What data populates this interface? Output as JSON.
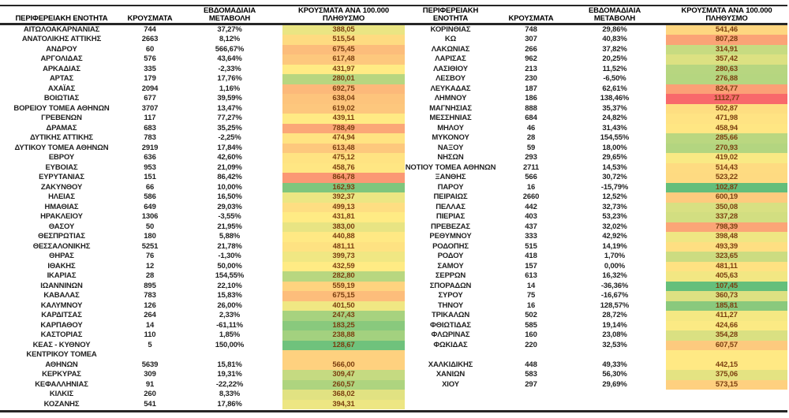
{
  "color_scale": {
    "min_color": "#63BE7B",
    "mid_color": "#FFEB84",
    "max_color": "#F8696B",
    "value_text_color": "#7b3f10",
    "border_color": "#262626"
  },
  "chart_data": {
    "type": "table",
    "headers": {
      "region": "ΠΕΡΙΦΕΡΕΙΑΚΗ ΕΝΟΤΗΤΑ",
      "cases": "ΚΡΟΥΣΜΑΤΑ",
      "change": "ΕΒΔΟΜΑΔΙΑΙΑ ΜΕΤΑΒΟΛΗ",
      "per100k": "ΚΡΟΥΣΜΑΤΑ ΑΝΑ 100.000 ΠΛΗΘΥΣΜΟ"
    },
    "tables": [
      {
        "id": "left",
        "rows": [
          {
            "name": "ΑΙΤΩΛΟΑΚΑΡΝΑΝΙΑΣ",
            "cases": "744",
            "change": "37,27%",
            "per100k": "388,05"
          },
          {
            "name": "ΑΝΑΤΟΛΙΚΗΣ ΑΤΤΙΚΗΣ",
            "cases": "2663",
            "change": "8,12%",
            "per100k": "515,54"
          },
          {
            "name": "ΑΝΔΡΟΥ",
            "cases": "60",
            "change": "566,67%",
            "per100k": "675,45"
          },
          {
            "name": "ΑΡΓΟΛΙΔΑΣ",
            "cases": "576",
            "change": "43,64%",
            "per100k": "617,48"
          },
          {
            "name": "ΑΡΚΑΔΙΑΣ",
            "cases": "335",
            "change": "-2,33%",
            "per100k": "431,97"
          },
          {
            "name": "ΑΡΤΑΣ",
            "cases": "179",
            "change": "17,76%",
            "per100k": "280,01"
          },
          {
            "name": "ΑΧΑΪΑΣ",
            "cases": "2094",
            "change": "1,16%",
            "per100k": "692,75"
          },
          {
            "name": "ΒΟΙΩΤΙΑΣ",
            "cases": "677",
            "change": "39,59%",
            "per100k": "638,04"
          },
          {
            "name": "ΒΟΡΕΙΟΥ ΤΟΜΕΑ ΑΘΗΝΩΝ",
            "cases": "3707",
            "change": "13,47%",
            "per100k": "619,02"
          },
          {
            "name": "ΓΡΕΒΕΝΩΝ",
            "cases": "117",
            "change": "77,27%",
            "per100k": "439,11"
          },
          {
            "name": "ΔΡΑΜΑΣ",
            "cases": "683",
            "change": "35,25%",
            "per100k": "788,49"
          },
          {
            "name": "ΔΥΤΙΚΗΣ ΑΤΤΙΚΗΣ",
            "cases": "783",
            "change": "-2,25%",
            "per100k": "474,94"
          },
          {
            "name": "ΔΥΤΙΚΟΥ ΤΟΜΕΑ ΑΘΗΝΩΝ",
            "cases": "2919",
            "change": "17,84%",
            "per100k": "613,48"
          },
          {
            "name": "ΕΒΡΟΥ",
            "cases": "636",
            "change": "42,60%",
            "per100k": "475,12"
          },
          {
            "name": "ΕΥΒΟΙΑΣ",
            "cases": "953",
            "change": "21,09%",
            "per100k": "458,76"
          },
          {
            "name": "ΕΥΡΥΤΑΝΙΑΣ",
            "cases": "151",
            "change": "86,42%",
            "per100k": "864,78"
          },
          {
            "name": "ΖΑΚΥΝΘΟΥ",
            "cases": "66",
            "change": "10,00%",
            "per100k": "162,93"
          },
          {
            "name": "ΗΛΕΙΑΣ",
            "cases": "586",
            "change": "16,50%",
            "per100k": "392,37"
          },
          {
            "name": "ΗΜΑΘΙΑΣ",
            "cases": "649",
            "change": "29,03%",
            "per100k": "499,13"
          },
          {
            "name": "ΗΡΑΚΛΕΙΟΥ",
            "cases": "1306",
            "change": "-3,55%",
            "per100k": "431,81"
          },
          {
            "name": "ΘΑΣΟΥ",
            "cases": "50",
            "change": "21,95%",
            "per100k": "383,00"
          },
          {
            "name": "ΘΕΣΠΡΩΤΙΑΣ",
            "cases": "180",
            "change": "5,88%",
            "per100k": "440,88"
          },
          {
            "name": "ΘΕΣΣΑΛΟΝΙΚΗΣ",
            "cases": "5251",
            "change": "21,78%",
            "per100k": "481,11"
          },
          {
            "name": "ΘΗΡΑΣ",
            "cases": "76",
            "change": "-1,30%",
            "per100k": "399,73"
          },
          {
            "name": "ΙΘΑΚΗΣ",
            "cases": "12",
            "change": "50,00%",
            "per100k": "432,59"
          },
          {
            "name": "ΙΚΑΡΙΑΣ",
            "cases": "28",
            "change": "154,55%",
            "per100k": "282,80"
          },
          {
            "name": "ΙΩΑΝΝΙΝΩΝ",
            "cases": "895",
            "change": "22,10%",
            "per100k": "559,19"
          },
          {
            "name": "ΚΑΒΑΛΑΣ",
            "cases": "783",
            "change": "15,83%",
            "per100k": "675,15"
          },
          {
            "name": "ΚΑΛΥΜΝΟΥ",
            "cases": "126",
            "change": "26,00%",
            "per100k": "401,50"
          },
          {
            "name": "ΚΑΡΔΙΤΣΑΣ",
            "cases": "264",
            "change": "2,33%",
            "per100k": "247,43"
          },
          {
            "name": "ΚΑΡΠΑΘΟΥ",
            "cases": "14",
            "change": "-61,11%",
            "per100k": "183,25"
          },
          {
            "name": "ΚΑΣΤΟΡΙΑΣ",
            "cases": "110",
            "change": "1,85%",
            "per100k": "238,88"
          },
          {
            "name": "ΚΕΑΣ - ΚΥΘΝΟΥ",
            "cases": "5",
            "change": "150,00%",
            "per100k": "128,67"
          },
          {
            "name": "ΚΕΝΤΡΙΚΟΥ ΤΟΜΕΑ",
            "cases": "",
            "change": "",
            "per100k": "",
            "fill": "566,00"
          },
          {
            "name": "ΑΘΗΝΩΝ",
            "cases": "5639",
            "change": "15,81%",
            "per100k": "566,00"
          },
          {
            "name": "ΚΕΡΚΥΡΑΣ",
            "cases": "309",
            "change": "19,31%",
            "per100k": "309,47"
          },
          {
            "name": "ΚΕΦΑΛΛΗΝΙΑΣ",
            "cases": "91",
            "change": "-22,22%",
            "per100k": "260,57"
          },
          {
            "name": "ΚΙΛΚΙΣ",
            "cases": "260",
            "change": "8,33%",
            "per100k": "368,02"
          },
          {
            "name": "ΚΟΖΑΝΗΣ",
            "cases": "541",
            "change": "17,86%",
            "per100k": "394,31"
          }
        ]
      },
      {
        "id": "right",
        "rows": [
          {
            "name": "ΚΟΡΙΝΘΙΑΣ",
            "cases": "748",
            "change": "29,86%",
            "per100k": "541,46"
          },
          {
            "name": "ΚΩ",
            "cases": "307",
            "change": "40,83%",
            "per100k": "807,28"
          },
          {
            "name": "ΛΑΚΩΝΙΑΣ",
            "cases": "266",
            "change": "37,82%",
            "per100k": "314,91"
          },
          {
            "name": "ΛΑΡΙΣΑΣ",
            "cases": "962",
            "change": "20,25%",
            "per100k": "357,42"
          },
          {
            "name": "ΛΑΣΙΘΙΟΥ",
            "cases": "213",
            "change": "11,52%",
            "per100k": "280,63"
          },
          {
            "name": "ΛΕΣΒΟΥ",
            "cases": "230",
            "change": "-6,50%",
            "per100k": "276,88"
          },
          {
            "name": "ΛΕΥΚΑΔΑΣ",
            "cases": "187",
            "change": "62,61%",
            "per100k": "824,77"
          },
          {
            "name": "ΛΗΜΝΟΥ",
            "cases": "186",
            "change": "138,46%",
            "per100k": "1112,77"
          },
          {
            "name": "ΜΑΓΝΗΣΙΑΣ",
            "cases": "888",
            "change": "35,37%",
            "per100k": "502,87"
          },
          {
            "name": "ΜΕΣΣΗΝΙΑΣ",
            "cases": "684",
            "change": "24,82%",
            "per100k": "471,98"
          },
          {
            "name": "ΜΗΛΟΥ",
            "cases": "46",
            "change": "31,43%",
            "per100k": "458,94"
          },
          {
            "name": "ΜΥΚΟΝΟΥ",
            "cases": "28",
            "change": "154,55%",
            "per100k": "285,66"
          },
          {
            "name": "ΝΑΞΟΥ",
            "cases": "59",
            "change": "18,00%",
            "per100k": "270,93"
          },
          {
            "name": "ΝΗΣΩΝ",
            "cases": "293",
            "change": "29,65%",
            "per100k": "419,02"
          },
          {
            "name": "ΝΟΤΙΟΥ ΤΟΜΕΑ ΑΘΗΝΩΝ",
            "cases": "2711",
            "change": "14,53%",
            "per100k": "514,43"
          },
          {
            "name": "ΞΑΝΘΗΣ",
            "cases": "566",
            "change": "30,72%",
            "per100k": "523,22"
          },
          {
            "name": "ΠΑΡΟΥ",
            "cases": "16",
            "change": "-15,79%",
            "per100k": "102,87"
          },
          {
            "name": "ΠΕΙΡΑΙΩΣ",
            "cases": "2660",
            "change": "12,52%",
            "per100k": "600,19"
          },
          {
            "name": "ΠΕΛΛΑΣ",
            "cases": "442",
            "change": "32,73%",
            "per100k": "350,08"
          },
          {
            "name": "ΠΙΕΡΙΑΣ",
            "cases": "403",
            "change": "53,23%",
            "per100k": "337,28"
          },
          {
            "name": "ΠΡΕΒΕΖΑΣ",
            "cases": "437",
            "change": "32,02%",
            "per100k": "798,39"
          },
          {
            "name": "ΡΕΘΥΜΝΟΥ",
            "cases": "333",
            "change": "42,92%",
            "per100k": "398,48"
          },
          {
            "name": "ΡΟΔΟΠΗΣ",
            "cases": "515",
            "change": "14,19%",
            "per100k": "493,39"
          },
          {
            "name": "ΡΟΔΟΥ",
            "cases": "418",
            "change": "1,70%",
            "per100k": "323,65"
          },
          {
            "name": "ΣΑΜΟΥ",
            "cases": "157",
            "change": "0,00%",
            "per100k": "481,11"
          },
          {
            "name": "ΣΕΡΡΩΝ",
            "cases": "613",
            "change": "16,32%",
            "per100k": "405,63"
          },
          {
            "name": "ΣΠΟΡΑΔΩΝ",
            "cases": "14",
            "change": "-36,36%",
            "per100k": "107,45"
          },
          {
            "name": "ΣΥΡΟΥ",
            "cases": "75",
            "change": "-16,67%",
            "per100k": "360,73"
          },
          {
            "name": "ΤΗΝΟΥ",
            "cases": "16",
            "change": "128,57%",
            "per100k": "185,81"
          },
          {
            "name": "ΤΡΙΚΑΛΩΝ",
            "cases": "502",
            "change": "28,72%",
            "per100k": "411,27"
          },
          {
            "name": "ΦΘΙΩΤΙΔΑΣ",
            "cases": "585",
            "change": "19,14%",
            "per100k": "424,66"
          },
          {
            "name": "ΦΛΩΡΙΝΑΣ",
            "cases": "160",
            "change": "23,08%",
            "per100k": "354,28"
          },
          {
            "name": "ΦΩΚΙΔΑΣ",
            "cases": "220",
            "change": "32,53%",
            "per100k": "607,57"
          },
          {
            "name": "",
            "cases": "",
            "change": "",
            "per100k": "",
            "fill": "442,15"
          },
          {
            "name": "ΧΑΛΚΙΔΙΚΗΣ",
            "cases": "448",
            "change": "49,33%",
            "per100k": "442,15"
          },
          {
            "name": "ΧΑΝΙΩΝ",
            "cases": "583",
            "change": "56,30%",
            "per100k": "375,06"
          },
          {
            "name": "ΧΙΟΥ",
            "cases": "297",
            "change": "29,69%",
            "per100k": "573,15"
          }
        ]
      }
    ]
  }
}
